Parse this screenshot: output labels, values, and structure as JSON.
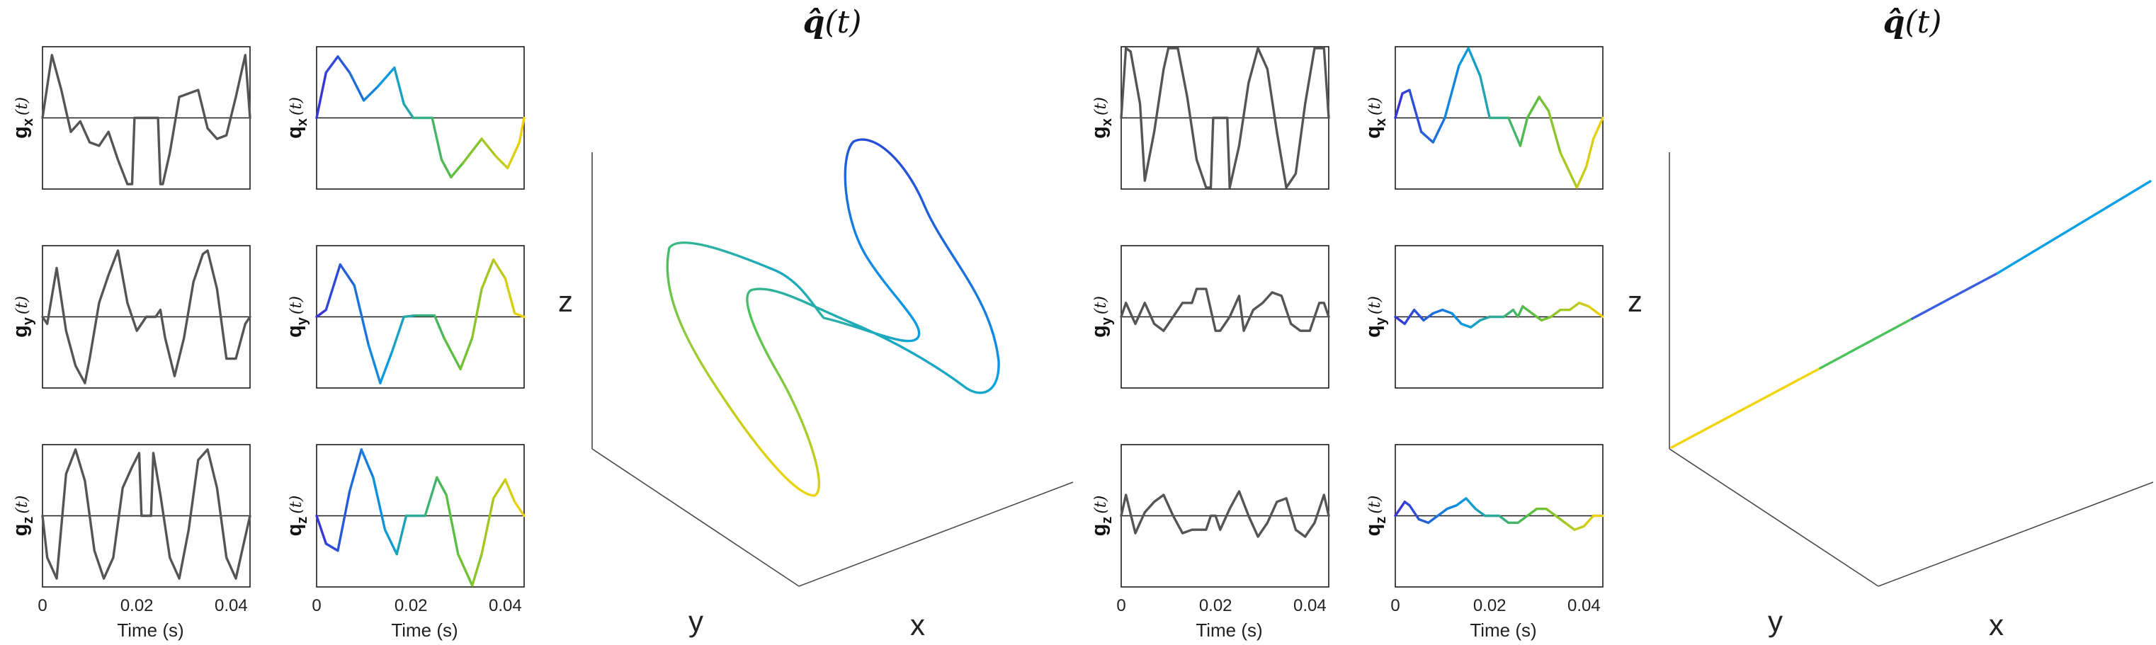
{
  "figure": {
    "title_left": "q̂",
    "title_left_arg": "(t)",
    "title_right": "q̂",
    "title_right_arg": "(t)"
  },
  "labels": {
    "time_axis": "Time (s)",
    "time_ticks": [
      "0",
      "0.02",
      "0.04"
    ],
    "t_arg": "(t)",
    "g_main": "g",
    "q_main": "q",
    "sub_x": "x",
    "sub_y": "y",
    "sub_z": "z",
    "axis_x": "x",
    "axis_y": "y",
    "axis_z": "z"
  },
  "colors": {
    "gradient_trace": "#555555",
    "moment_start": "#3b2fd4",
    "moment_mid": "#0a9ae0",
    "moment_late": "#5cbf3a",
    "moment_end": "#f5d20a"
  },
  "chart_data": [
    {
      "type": "line",
      "panel": "left-gradient-x",
      "xlabel": "",
      "ylabel": "g_x(t)",
      "xlim": [
        0,
        0.044
      ],
      "ylim": [
        -1,
        1
      ],
      "x": [
        0,
        0.002,
        0.004,
        0.006,
        0.008,
        0.01,
        0.012,
        0.014,
        0.016,
        0.018,
        0.019,
        0.0195,
        0.02,
        0.0245,
        0.025,
        0.0255,
        0.027,
        0.029,
        0.031,
        0.033,
        0.035,
        0.037,
        0.039,
        0.041,
        0.043,
        0.044
      ],
      "y": [
        0.0,
        0.9,
        0.4,
        -0.2,
        -0.05,
        -0.35,
        -0.4,
        -0.2,
        -0.6,
        -0.95,
        -0.95,
        0.0,
        0.0,
        0.0,
        -0.95,
        -0.95,
        -0.5,
        0.3,
        0.35,
        0.4,
        -0.15,
        -0.3,
        -0.25,
        0.3,
        0.9,
        0.0
      ]
    },
    {
      "type": "line",
      "panel": "left-gradient-y",
      "xlabel": "",
      "ylabel": "g_y(t)",
      "xlim": [
        0,
        0.044
      ],
      "ylim": [
        -1,
        1
      ],
      "x": [
        0,
        0.001,
        0.003,
        0.005,
        0.007,
        0.009,
        0.01,
        0.012,
        0.014,
        0.016,
        0.018,
        0.02,
        0.022,
        0.024,
        0.025,
        0.026,
        0.028,
        0.03,
        0.032,
        0.034,
        0.035,
        0.037,
        0.039,
        0.041,
        0.043,
        0.044
      ],
      "y": [
        0.0,
        -0.1,
        0.7,
        -0.2,
        -0.7,
        -0.95,
        -0.6,
        0.2,
        0.6,
        0.95,
        0.2,
        -0.2,
        0.0,
        0.0,
        0.1,
        -0.3,
        -0.85,
        -0.3,
        0.5,
        0.9,
        0.95,
        0.4,
        -0.6,
        -0.6,
        -0.1,
        0.0
      ]
    },
    {
      "type": "line",
      "panel": "left-gradient-z",
      "xlabel": "Time (s)",
      "ylabel": "g_z(t)",
      "xlim": [
        0,
        0.044
      ],
      "ylim": [
        -1,
        1
      ],
      "x": [
        0,
        0.001,
        0.003,
        0.005,
        0.007,
        0.009,
        0.011,
        0.013,
        0.015,
        0.017,
        0.019,
        0.0205,
        0.021,
        0.023,
        0.0235,
        0.025,
        0.027,
        0.029,
        0.031,
        0.033,
        0.035,
        0.037,
        0.039,
        0.041,
        0.043,
        0.044
      ],
      "y": [
        0.0,
        -0.6,
        -0.9,
        0.6,
        0.95,
        0.5,
        -0.5,
        -0.9,
        -0.6,
        0.4,
        0.7,
        0.9,
        0.0,
        0.0,
        0.9,
        0.3,
        -0.6,
        -0.9,
        -0.2,
        0.8,
        0.95,
        0.4,
        -0.6,
        -0.9,
        -0.3,
        0.0
      ]
    },
    {
      "type": "line",
      "panel": "left-moment-x",
      "xlabel": "",
      "ylabel": "q_x(t)",
      "xlim": [
        0,
        0.044
      ],
      "ylim": [
        -1,
        1
      ],
      "x": [
        0,
        0.002,
        0.0045,
        0.007,
        0.01,
        0.013,
        0.0165,
        0.0185,
        0.0205,
        0.0245,
        0.0265,
        0.0285,
        0.031,
        0.035,
        0.038,
        0.0405,
        0.043,
        0.044
      ],
      "y": [
        0.0,
        0.65,
        0.88,
        0.65,
        0.25,
        0.45,
        0.72,
        0.2,
        0.0,
        0.0,
        -0.6,
        -0.85,
        -0.65,
        -0.3,
        -0.55,
        -0.72,
        -0.35,
        0.0
      ]
    },
    {
      "type": "line",
      "panel": "left-moment-y",
      "xlabel": "",
      "ylabel": "q_y(t)",
      "xlim": [
        0,
        0.044
      ],
      "ylim": [
        -1,
        1
      ],
      "x": [
        0,
        0.002,
        0.005,
        0.008,
        0.011,
        0.0135,
        0.016,
        0.0185,
        0.021,
        0.025,
        0.027,
        0.0305,
        0.033,
        0.035,
        0.0375,
        0.04,
        0.042,
        0.044
      ],
      "y": [
        0.0,
        0.1,
        0.75,
        0.45,
        -0.4,
        -0.95,
        -0.5,
        0.0,
        0.02,
        0.02,
        -0.3,
        -0.75,
        -0.3,
        0.4,
        0.82,
        0.55,
        0.05,
        0.0
      ]
    },
    {
      "type": "line",
      "panel": "left-moment-z",
      "xlabel": "Time (s)",
      "ylabel": "q_z(t)",
      "xlim": [
        0,
        0.044
      ],
      "ylim": [
        -1,
        1
      ],
      "x": [
        0,
        0.002,
        0.0045,
        0.007,
        0.0095,
        0.012,
        0.0145,
        0.017,
        0.019,
        0.023,
        0.0255,
        0.0275,
        0.03,
        0.033,
        0.035,
        0.0375,
        0.04,
        0.042,
        0.044
      ],
      "y": [
        0.0,
        -0.4,
        -0.5,
        0.35,
        0.95,
        0.55,
        -0.2,
        -0.55,
        0.0,
        0.0,
        0.55,
        0.3,
        -0.55,
        -1.0,
        -0.55,
        0.25,
        0.52,
        0.2,
        0.0
      ]
    },
    {
      "type": "line",
      "panel": "right-gradient-x",
      "xlabel": "",
      "ylabel": "g_x(t)",
      "xlim": [
        0,
        0.044
      ],
      "ylim": [
        -1,
        1
      ],
      "x": [
        0,
        0.001,
        0.002,
        0.004,
        0.005,
        0.007,
        0.009,
        0.01,
        0.012,
        0.014,
        0.016,
        0.018,
        0.019,
        0.0195,
        0.0225,
        0.023,
        0.025,
        0.027,
        0.029,
        0.031,
        0.033,
        0.035,
        0.037,
        0.039,
        0.041,
        0.043,
        0.044
      ],
      "y": [
        0.0,
        1.0,
        0.95,
        0.2,
        -0.9,
        -0.2,
        0.7,
        1.0,
        1.0,
        0.3,
        -0.6,
        -1.0,
        -1.0,
        0.0,
        0.0,
        -1.0,
        -0.4,
        0.5,
        1.0,
        0.7,
        -0.2,
        -1.0,
        -0.8,
        0.2,
        1.0,
        1.0,
        0.0
      ]
    },
    {
      "type": "line",
      "panel": "right-gradient-y",
      "xlabel": "",
      "ylabel": "g_y(t)",
      "xlim": [
        0,
        0.044
      ],
      "ylim": [
        -1,
        1
      ],
      "x": [
        0,
        0.001,
        0.003,
        0.005,
        0.007,
        0.009,
        0.011,
        0.013,
        0.015,
        0.016,
        0.018,
        0.02,
        0.021,
        0.023,
        0.025,
        0.026,
        0.028,
        0.03,
        0.032,
        0.034,
        0.036,
        0.038,
        0.04,
        0.042,
        0.043,
        0.044
      ],
      "y": [
        0.0,
        0.2,
        -0.1,
        0.2,
        -0.1,
        -0.2,
        0.0,
        0.2,
        0.2,
        0.4,
        0.4,
        -0.2,
        -0.2,
        0.0,
        0.3,
        -0.2,
        0.1,
        0.2,
        0.35,
        0.3,
        -0.1,
        -0.2,
        -0.2,
        0.2,
        0.2,
        0.0
      ]
    },
    {
      "type": "line",
      "panel": "right-gradient-z",
      "xlabel": "Time (s)",
      "ylabel": "g_z(t)",
      "xlim": [
        0,
        0.044
      ],
      "ylim": [
        -1,
        1
      ],
      "x": [
        0,
        0.001,
        0.003,
        0.005,
        0.007,
        0.009,
        0.011,
        0.013,
        0.015,
        0.017,
        0.018,
        0.019,
        0.02,
        0.021,
        0.023,
        0.025,
        0.027,
        0.029,
        0.031,
        0.033,
        0.035,
        0.037,
        0.039,
        0.041,
        0.043,
        0.044
      ],
      "y": [
        0.0,
        0.3,
        -0.25,
        0.05,
        0.2,
        0.3,
        0.0,
        -0.25,
        -0.2,
        -0.2,
        -0.2,
        0.0,
        0.0,
        -0.2,
        0.1,
        0.35,
        0.0,
        -0.3,
        -0.1,
        0.2,
        0.25,
        -0.2,
        -0.3,
        -0.1,
        0.3,
        0.0
      ]
    },
    {
      "type": "line",
      "panel": "right-moment-x",
      "xlabel": "",
      "ylabel": "q_x(t)",
      "xlim": [
        0,
        0.044
      ],
      "ylim": [
        -1,
        1
      ],
      "x": [
        0,
        0.0015,
        0.003,
        0.0055,
        0.008,
        0.0105,
        0.0135,
        0.0155,
        0.018,
        0.02,
        0.024,
        0.0265,
        0.028,
        0.0305,
        0.0325,
        0.035,
        0.0385,
        0.0405,
        0.042,
        0.044
      ],
      "y": [
        0.0,
        0.35,
        0.4,
        -0.2,
        -0.35,
        0.0,
        0.75,
        1.0,
        0.6,
        0.0,
        0.0,
        -0.4,
        0.0,
        0.3,
        0.1,
        -0.5,
        -1.0,
        -0.7,
        -0.3,
        0.0
      ]
    },
    {
      "type": "line",
      "panel": "right-moment-y",
      "xlabel": "",
      "ylabel": "q_y(t)",
      "xlim": [
        0,
        0.044
      ],
      "ylim": [
        -1,
        1
      ],
      "x": [
        0,
        0.002,
        0.004,
        0.006,
        0.008,
        0.01,
        0.012,
        0.014,
        0.016,
        0.018,
        0.02,
        0.023,
        0.025,
        0.026,
        0.027,
        0.029,
        0.031,
        0.033,
        0.035,
        0.037,
        0.039,
        0.041,
        0.043,
        0.044
      ],
      "y": [
        0.0,
        -0.1,
        0.1,
        -0.05,
        0.05,
        0.1,
        0.05,
        -0.1,
        -0.15,
        -0.05,
        0.0,
        0.0,
        0.1,
        0.0,
        0.15,
        0.05,
        -0.05,
        0.0,
        0.1,
        0.1,
        0.2,
        0.15,
        0.05,
        0.0
      ]
    },
    {
      "type": "line",
      "panel": "right-moment-z",
      "xlabel": "Time (s)",
      "ylabel": "q_z(t)",
      "xlim": [
        0,
        0.044
      ],
      "ylim": [
        -1,
        1
      ],
      "x": [
        0,
        0.002,
        0.003,
        0.005,
        0.007,
        0.009,
        0.011,
        0.013,
        0.015,
        0.017,
        0.019,
        0.022,
        0.024,
        0.026,
        0.028,
        0.03,
        0.032,
        0.034,
        0.036,
        0.038,
        0.04,
        0.042,
        0.044
      ],
      "y": [
        0.0,
        0.2,
        0.15,
        -0.05,
        -0.1,
        0.0,
        0.1,
        0.15,
        0.25,
        0.1,
        0.0,
        0.0,
        -0.1,
        -0.1,
        0.0,
        0.1,
        0.1,
        0.0,
        -0.1,
        -0.2,
        -0.15,
        0.0,
        0.0
      ]
    }
  ]
}
